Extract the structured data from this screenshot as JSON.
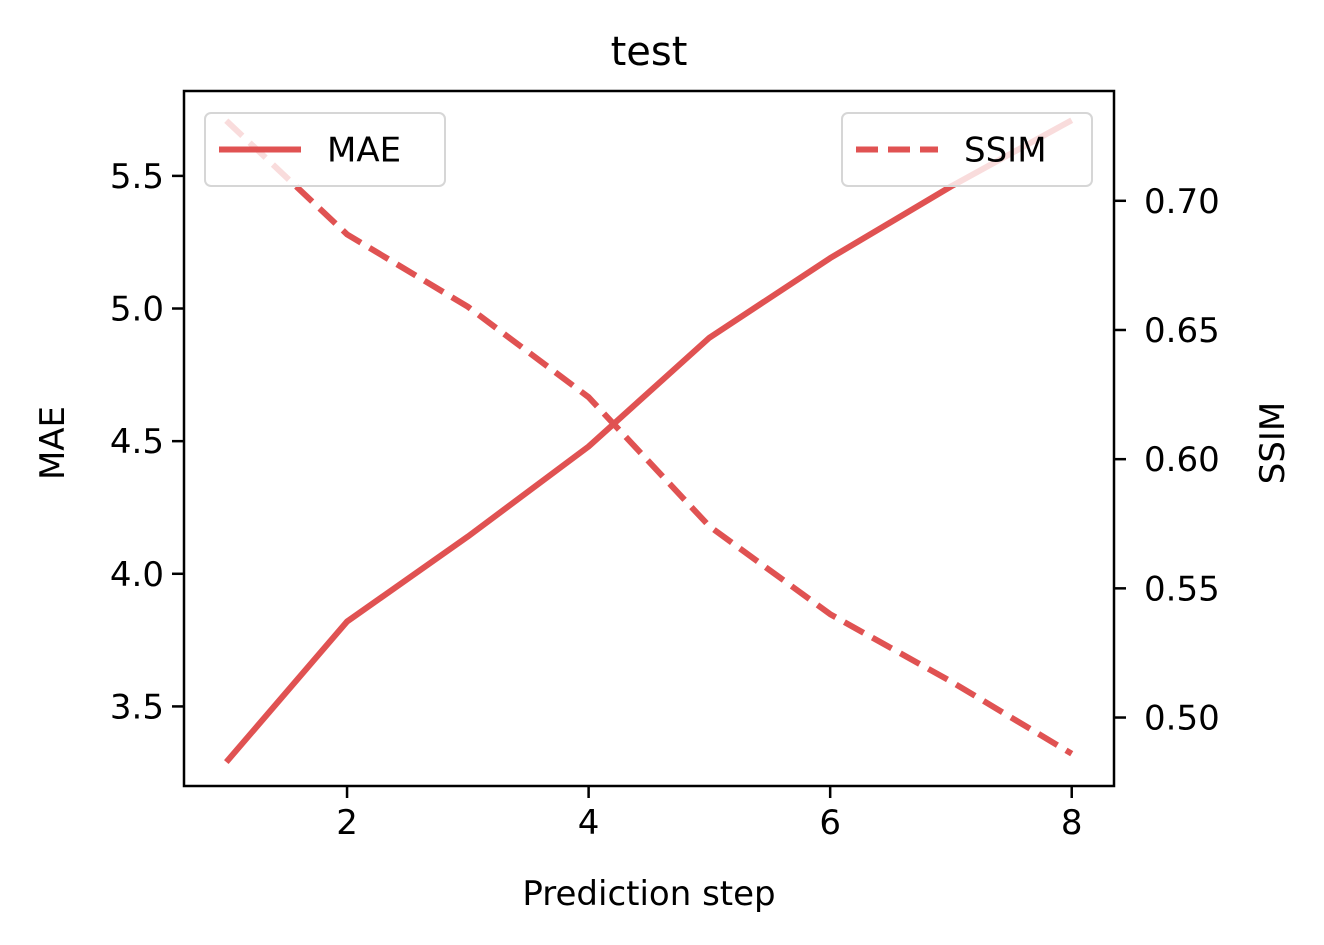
{
  "chart_data": {
    "type": "line",
    "title": "test",
    "xlabel": "Prediction step",
    "ylabel_left": "MAE",
    "ylabel_right": "SSIM",
    "x": [
      1,
      2,
      3,
      4,
      5,
      6,
      7,
      8
    ],
    "xlim": [
      0.65,
      8.35
    ],
    "ylim_left": [
      3.2,
      5.82
    ],
    "ylim_right": [
      0.4735,
      0.7425
    ],
    "x_ticks": [
      2,
      4,
      6,
      8
    ],
    "y_ticks_left": [
      3.5,
      4.0,
      4.5,
      5.0,
      5.5
    ],
    "y_ticks_right": [
      0.5,
      0.55,
      0.6,
      0.65,
      0.7
    ],
    "x_tick_labels": [
      "2",
      "4",
      "6",
      "8"
    ],
    "y_tick_labels_left": [
      "3.5",
      "4.0",
      "4.5",
      "5.0",
      "5.5"
    ],
    "y_tick_labels_right": [
      "0.50",
      "0.55",
      "0.60",
      "0.65",
      "0.70"
    ],
    "series": [
      {
        "name": "MAE",
        "axis": "left",
        "style": "solid",
        "color": "#e05252",
        "values": [
          3.29,
          3.82,
          4.14,
          4.48,
          4.89,
          5.19,
          5.46,
          5.71
        ]
      },
      {
        "name": "SSIM",
        "axis": "right",
        "style": "dashed",
        "color": "#e05252",
        "values": [
          0.731,
          0.687,
          0.659,
          0.624,
          0.574,
          0.54,
          0.514,
          0.486
        ]
      }
    ],
    "legend_left_position": "upper-left",
    "legend_right_position": "upper-right",
    "grid": false
  }
}
